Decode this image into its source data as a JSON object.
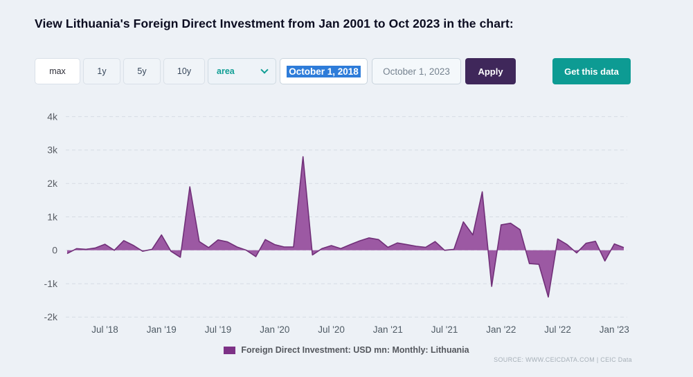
{
  "page": {
    "title": "View Lithuania's Foreign Direct Investment from Jan 2001 to Oct 2023 in the chart:"
  },
  "toolbar": {
    "range_buttons": [
      {
        "label": "max",
        "active": true
      },
      {
        "label": "1y",
        "active": false
      },
      {
        "label": "5y",
        "active": false
      },
      {
        "label": "10y",
        "active": false
      }
    ],
    "chart_type_select": {
      "value": "area"
    },
    "date_from": {
      "value": "October 1, 2018",
      "text_selected": true
    },
    "date_to": {
      "value": "October 1, 2023"
    },
    "apply_label": "Apply",
    "get_data_label": "Get this data"
  },
  "legend": {
    "label": "Foreign Direct Investment: USD mn: Monthly: Lithuania"
  },
  "source": {
    "text": "SOURCE: WWW.CEICDATA.COM | CEIC Data"
  },
  "chart_data": {
    "type": "area",
    "title": "Foreign Direct Investment: USD mn: Monthly: Lithuania",
    "ylabel": "USD mn",
    "ylim": [
      -2000,
      4500
    ],
    "grid": "horizontal dashed",
    "legend_position": "bottom center",
    "colors": {
      "area_fill": "#9c59a3",
      "area_stroke": "#702f78",
      "legend_swatch": "#7d3186",
      "accent_teal": "#0f9e94",
      "accent_purple": "#3f275a"
    },
    "y_ticks": [
      {
        "label": "4k",
        "value": 4000
      },
      {
        "label": "3k",
        "value": 3000
      },
      {
        "label": "2k",
        "value": 2000
      },
      {
        "label": "1k",
        "value": 1000
      },
      {
        "label": "0",
        "value": 0
      },
      {
        "label": "-1k",
        "value": -1000
      },
      {
        "label": "-2k",
        "value": -2000
      }
    ],
    "x_ticks": [
      {
        "label": "Jul '18",
        "month": "2018-07"
      },
      {
        "label": "Jan '19",
        "month": "2019-01"
      },
      {
        "label": "Jul '19",
        "month": "2019-07"
      },
      {
        "label": "Jan '20",
        "month": "2020-01"
      },
      {
        "label": "Jul '20",
        "month": "2020-07"
      },
      {
        "label": "Jan '21",
        "month": "2021-01"
      },
      {
        "label": "Jul '21",
        "month": "2021-07"
      },
      {
        "label": "Jan '22",
        "month": "2022-01"
      },
      {
        "label": "Jul '22",
        "month": "2022-07"
      },
      {
        "label": "Jan '23",
        "month": "2023-01"
      }
    ],
    "series": [
      {
        "name": "Foreign Direct Investment: USD mn: Monthly: Lithuania",
        "x": [
          "2018-03",
          "2018-04",
          "2018-05",
          "2018-06",
          "2018-07",
          "2018-08",
          "2018-09",
          "2018-10",
          "2018-11",
          "2018-12",
          "2019-01",
          "2019-02",
          "2019-03",
          "2019-04",
          "2019-05",
          "2019-06",
          "2019-07",
          "2019-08",
          "2019-09",
          "2019-10",
          "2019-11",
          "2019-12",
          "2020-01",
          "2020-02",
          "2020-03",
          "2020-04",
          "2020-05",
          "2020-06",
          "2020-07",
          "2020-08",
          "2020-09",
          "2020-10",
          "2020-11",
          "2020-12",
          "2021-01",
          "2021-02",
          "2021-03",
          "2021-04",
          "2021-05",
          "2021-06",
          "2021-07",
          "2021-08",
          "2021-09",
          "2021-10",
          "2021-11",
          "2021-12",
          "2022-01",
          "2022-02",
          "2022-03",
          "2022-04",
          "2022-05",
          "2022-06",
          "2022-07",
          "2022-08",
          "2022-09",
          "2022-10",
          "2022-11",
          "2022-12",
          "2023-01",
          "2023-02"
        ],
        "values": [
          -100,
          50,
          30,
          70,
          180,
          0,
          290,
          150,
          -30,
          30,
          460,
          -30,
          -210,
          1900,
          260,
          80,
          310,
          250,
          100,
          0,
          -190,
          320,
          170,
          100,
          100,
          2800,
          -140,
          50,
          140,
          50,
          170,
          280,
          370,
          320,
          90,
          220,
          170,
          120,
          90,
          260,
          0,
          30,
          850,
          460,
          1750,
          -1080,
          760,
          810,
          620,
          -400,
          -420,
          -1400,
          340,
          170,
          -80,
          210,
          270,
          -320,
          190,
          80
        ]
      }
    ]
  }
}
